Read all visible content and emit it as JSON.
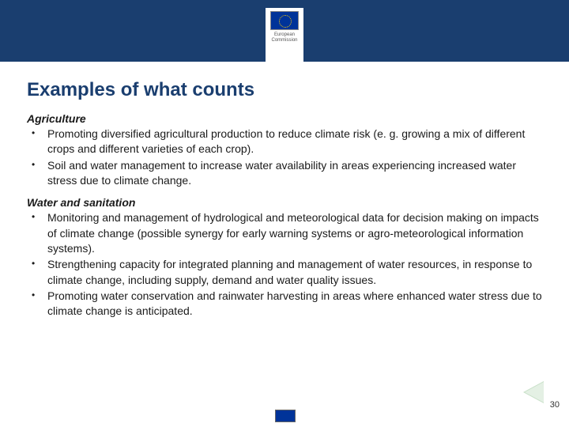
{
  "header": {
    "logo_line1": "European",
    "logo_line2": "Commission"
  },
  "title": "Examples of what counts",
  "sections": [
    {
      "heading": "Agriculture",
      "items": [
        "Promoting diversified agricultural production to reduce climate risk (e. g. growing a mix of different crops and different varieties of each crop).",
        "Soil and water management to increase water availability in areas experiencing increased water stress due to climate change."
      ]
    },
    {
      "heading": "Water and sanitation",
      "items": [
        "Monitoring and management of hydrological and meteorological data for decision making on impacts of climate change (possible synergy for early warning systems or agro-meteorological information systems).",
        "Strengthening capacity for integrated planning and management of water resources, in response to climate change, including supply, demand and water quality issues.",
        "Promoting water conservation and rainwater harvesting in areas where enhanced water stress due to climate change is anticipated."
      ]
    }
  ],
  "page_number": "30",
  "colors": {
    "header_bg": "#1a3e6f",
    "title_color": "#1a3e6f",
    "body_text": "#1a1a1a",
    "flag_bg": "#003399"
  }
}
